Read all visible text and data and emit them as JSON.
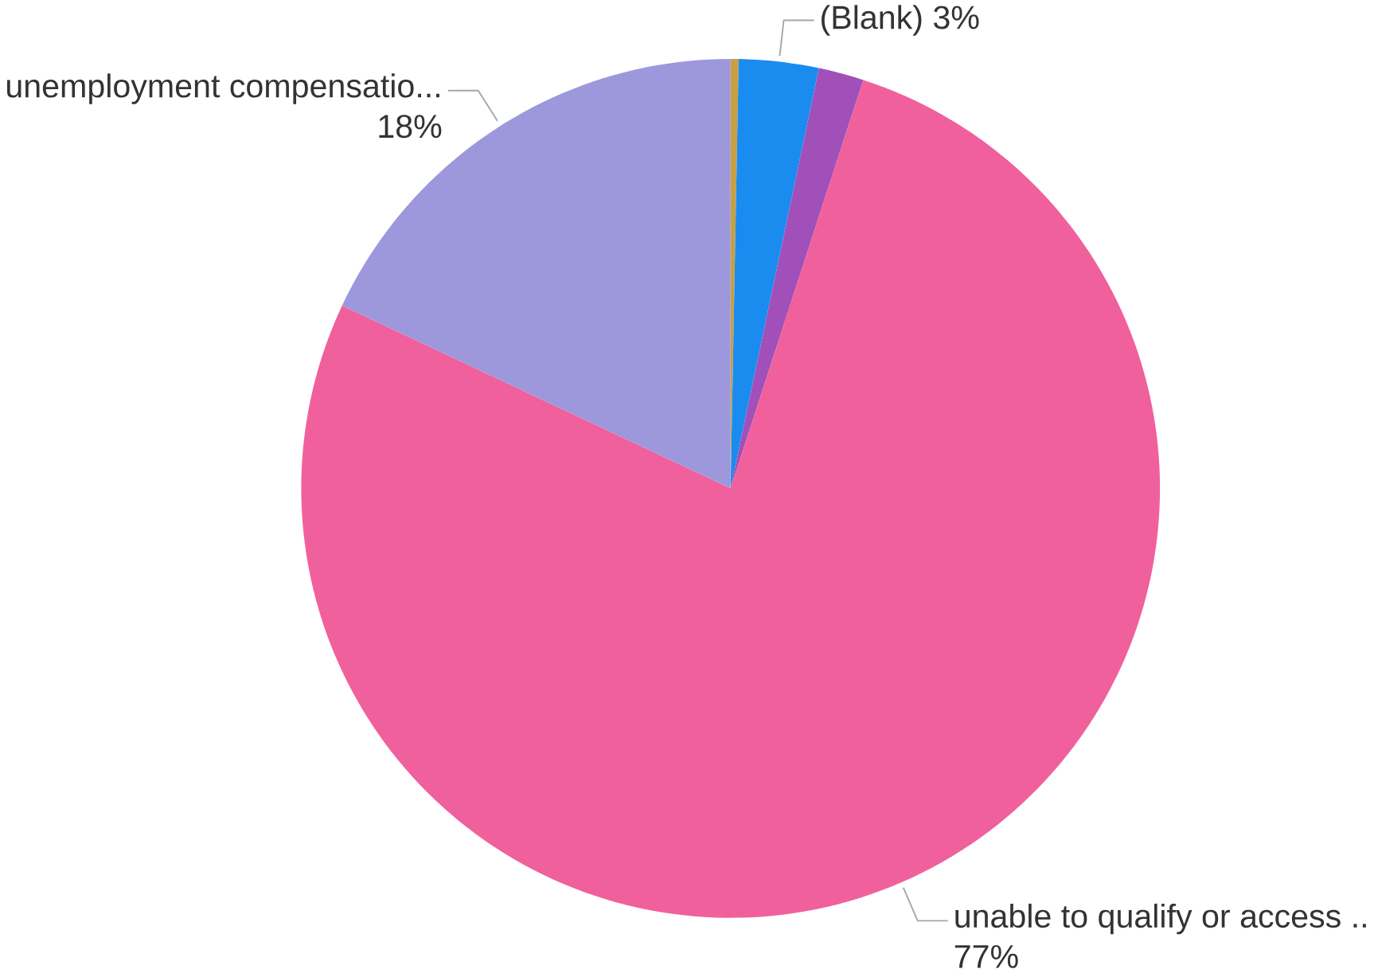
{
  "chart_data": {
    "type": "pie",
    "categories": [
      null,
      "(Blank)",
      null,
      "unable to qualify or access ..",
      "unemployment compensatio..."
    ],
    "values": [
      0.3,
      3,
      1.7,
      77,
      18
    ],
    "value_labels": [
      null,
      "3%",
      null,
      "77%",
      "18%"
    ],
    "colors": [
      "#c8a040",
      "#1a8cf0",
      "#a050b8",
      "#f0609c",
      "#9d97dc"
    ]
  }
}
